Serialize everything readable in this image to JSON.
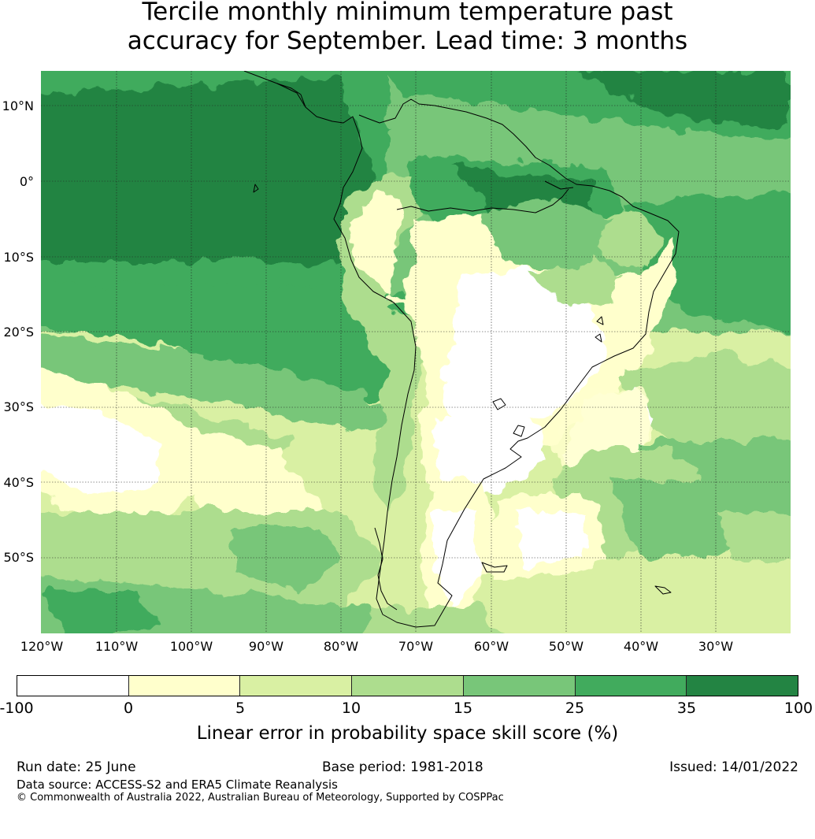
{
  "title": {
    "line1": "Tercile monthly minimum temperature past",
    "line2": "accuracy for September. Lead time: 3 months"
  },
  "map": {
    "region": "South America",
    "lat_labels": [
      "10°N",
      "0°",
      "10°S",
      "20°S",
      "30°S",
      "40°S",
      "50°S"
    ],
    "lon_labels": [
      "120°W",
      "110°W",
      "100°W",
      "90°W",
      "80°W",
      "70°W",
      "60°W",
      "50°W",
      "40°W",
      "30°W"
    ],
    "coastline_color": "#000000",
    "gridlines": true
  },
  "colorbar": {
    "label": "Linear error in probability space skill score (%)",
    "ticks": [
      "-100",
      "0",
      "5",
      "10",
      "15",
      "25",
      "35",
      "100"
    ],
    "colors": [
      "#ffffff",
      "#ffffcc",
      "#d9f0a3",
      "#addd8e",
      "#78c679",
      "#41ab5d",
      "#238443"
    ]
  },
  "footer": {
    "run_date": "Run date: 25 June",
    "base_period": "Base period: 1981-2018",
    "issued": "Issued: 14/01/2022",
    "data_source": "Data source: ACCESS-S2 and ERA5 Climate Reanalysis",
    "copyright": "© Commonwealth of Australia 2022, Australian Bureau of Meteorology, Supported by COSPPac"
  }
}
